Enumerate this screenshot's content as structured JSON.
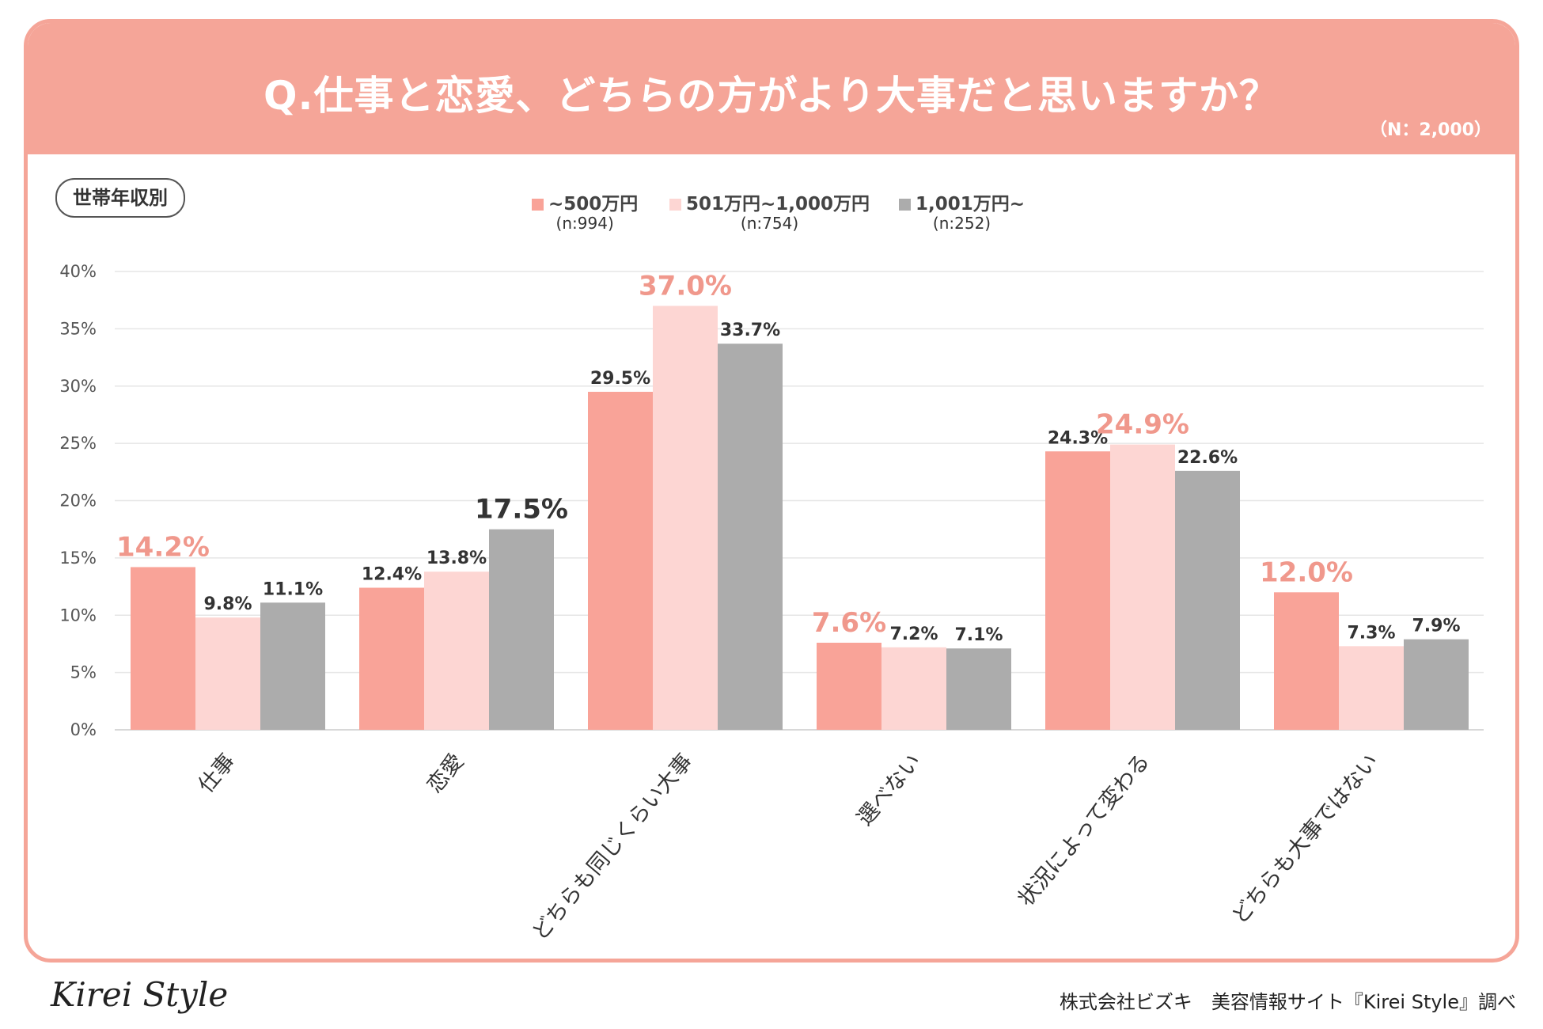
{
  "header": {
    "title": "Q.仕事と恋愛、どちらの方がより大事だと思いますか？",
    "sample_size": "（N：2,000）"
  },
  "segment_tag": "世帯年収別",
  "legend": [
    {
      "label": "~500万円",
      "n": "(n:994)",
      "color": "#f9a398"
    },
    {
      "label": "501万円~1,000万円",
      "n": "(n:754)",
      "color": "#fdd6d3"
    },
    {
      "label": "1,001万円~",
      "n": "(n:252)",
      "color": "#acacac"
    }
  ],
  "chart_data": {
    "type": "bar",
    "title": "Q.仕事と恋愛、どちらの方がより大事だと思いますか？",
    "categories": [
      "仕事",
      "恋愛",
      "どちらも同じくらい大事",
      "選べない",
      "状況によって変わる",
      "どちらも大事ではない"
    ],
    "series": [
      {
        "name": "~500万円",
        "values": [
          14.2,
          12.4,
          29.5,
          7.6,
          24.3,
          12.0
        ],
        "color": "#f9a398"
      },
      {
        "name": "501万円~1,000万円",
        "values": [
          9.8,
          13.8,
          37.0,
          7.2,
          24.9,
          7.3
        ],
        "color": "#fdd6d3"
      },
      {
        "name": "1,001万円~",
        "values": [
          11.1,
          17.5,
          33.7,
          7.1,
          22.6,
          7.9
        ],
        "color": "#acacac"
      }
    ],
    "data_labels": [
      [
        "14.2%",
        "9.8%",
        "11.1%"
      ],
      [
        "12.4%",
        "13.8%",
        "17.5%"
      ],
      [
        "29.5%",
        "37.0%",
        "33.7%"
      ],
      [
        "7.6%",
        "7.2%",
        "7.1%"
      ],
      [
        "24.3%",
        "24.9%",
        "22.6%"
      ],
      [
        "12.0%",
        "7.3%",
        "7.9%"
      ]
    ],
    "highlight_series": [
      0,
      2,
      1,
      0,
      1,
      0
    ],
    "highlight_color": "#f0988c",
    "highlight_dark_color": "#333333",
    "y_ticks": [
      "0%",
      "5%",
      "10%",
      "15%",
      "20%",
      "25%",
      "30%",
      "35%",
      "40%"
    ],
    "ylim": [
      0,
      40
    ],
    "grid": true
  },
  "footer": {
    "logo": "Kirei Style",
    "credit": "株式会社ビズキ　美容情報サイト『Kirei Style』調べ"
  }
}
